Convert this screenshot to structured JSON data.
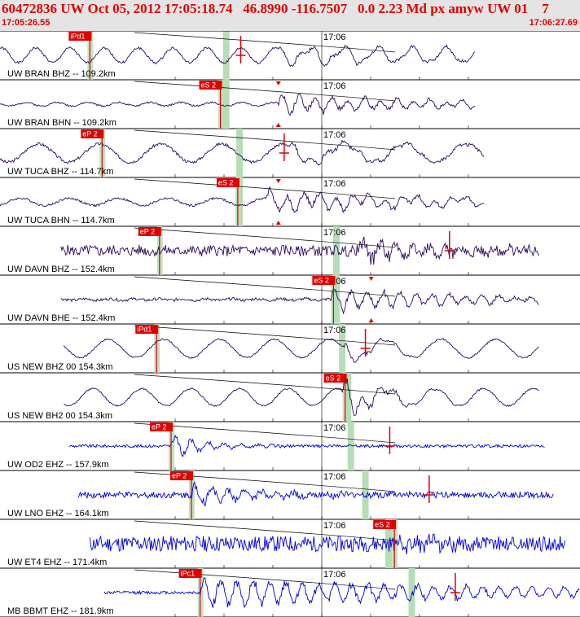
{
  "header": {
    "title": "60472836 UW Oct 05, 2012 17:05:18.74   46.8990 -116.7507   0.0 2.23 Md px amyw UW 01    7",
    "start_time": "17:05:26.55",
    "end_time": "17:06:27.69"
  },
  "minute_mark": "17:06",
  "colors": {
    "header_bg": "#e4e4e4",
    "header_text": "#e00000",
    "trace_velocity": "#2a0a5c",
    "trace_short_period": "#0000dd",
    "pick_box": "#e00000",
    "pick_window": "#b7ddb7"
  },
  "channels": [
    {
      "label": "UW BRAN BHZ -- 109.2km",
      "color": "#2a0a5c",
      "start": 0.0,
      "end": 0.82,
      "amp": 0.55,
      "noise": 0.12,
      "wave": 0.75,
      "period": 42,
      "arr": 0.48,
      "arrAmp": 0.3,
      "arrLen": 0.24,
      "phase": "iPd1",
      "pickPos": 0.155,
      "win": 0.39,
      "mark": "plus",
      "markPos": 0.415,
      "dir": "up",
      "seed": 1
    },
    {
      "label": "UW BRAN BHN -- 109.2km",
      "color": "#2a0a5c",
      "start": 0.0,
      "end": 0.82,
      "amp": 0.4,
      "noise": 0.12,
      "wave": 0.25,
      "period": 38,
      "arr": 0.48,
      "arrAmp": 0.75,
      "arrLen": 0.28,
      "phase": "eS 2",
      "pickPos": 0.38,
      "win": 0.39,
      "mark": "tri",
      "markPos": 0.48,
      "dir": "down",
      "seed": 2
    },
    {
      "label": "UW TUCA BHZ -- 114.7km",
      "color": "#2a0a5c",
      "start": 0.0,
      "end": 0.835,
      "amp": 0.6,
      "noise": 0.14,
      "wave": 0.85,
      "period": 75,
      "arr": 0.5,
      "arrAmp": 0.25,
      "arrLen": 0.2,
      "phase": "eP 2",
      "pickPos": 0.176,
      "win": 0.413,
      "mark": "plus",
      "markPos": 0.49,
      "dir": "up",
      "seed": 3
    },
    {
      "label": "UW TUCA BHN -- 114.7km",
      "color": "#2a0a5c",
      "start": 0.0,
      "end": 0.835,
      "amp": 0.45,
      "noise": 0.14,
      "wave": 0.45,
      "period": 60,
      "arr": 0.46,
      "arrAmp": 0.7,
      "arrLen": 0.3,
      "phase": "eS 2",
      "pickPos": 0.41,
      "win": 0.413,
      "mark": "tri",
      "markPos": 0.48,
      "dir": "down",
      "seed": 4
    },
    {
      "label": "UW DAVN BHZ -- 152.4km",
      "color": "#2a0a5c",
      "start": 0.105,
      "end": 0.93,
      "amp": 0.42,
      "noise": 0.7,
      "wave": 0.1,
      "period": 30,
      "arr": 0.62,
      "arrAmp": 0.8,
      "arrLen": 0.15,
      "phase": "eP 2",
      "pickPos": 0.275,
      "win": 0.58,
      "mark": "plus",
      "markPos": 0.775,
      "dir": "up",
      "seed": 5
    },
    {
      "label": "UW DAVN BHE -- 152.4km",
      "color": "#2a0a5c",
      "start": 0.105,
      "end": 0.93,
      "amp": 0.4,
      "noise": 0.2,
      "wave": 0.1,
      "period": 30,
      "arr": 0.57,
      "arrAmp": 0.85,
      "arrLen": 0.25,
      "phase": "eS 2",
      "pickPos": 0.575,
      "win": 0.58,
      "mark": "tri",
      "markPos": 0.64,
      "dir": "down",
      "seed": 6
    },
    {
      "label": "US NEW BHZ 00 154.3km",
      "color": "#2a0a5c",
      "start": 0.11,
      "end": 0.93,
      "amp": 0.6,
      "noise": 0.08,
      "wave": 0.85,
      "period": 68,
      "arr": 0.59,
      "arrAmp": 0.35,
      "arrLen": 0.06,
      "phase": "iPd1",
      "pickPos": 0.27,
      "win": 0.59,
      "mark": "plus",
      "markPos": 0.63,
      "dir": "up",
      "seed": 7
    },
    {
      "label": "US NEW BH2 00 154.3km",
      "color": "#2a0a5c",
      "start": 0.11,
      "end": 0.93,
      "amp": 0.6,
      "noise": 0.08,
      "wave": 0.8,
      "period": 60,
      "arr": 0.59,
      "arrAmp": 0.8,
      "arrLen": 0.06,
      "phase": "eS 2",
      "pickPos": 0.595,
      "win": 0.6,
      "mark": "none",
      "markPos": 0,
      "dir": "down",
      "seed": 8
    },
    {
      "label": "UW OD2 EHZ -- 157.9km",
      "color": "#0000dd",
      "start": 0.12,
      "end": 0.94,
      "amp": 0.65,
      "noise": 0.13,
      "wave": 0,
      "period": 20,
      "arr": 0.295,
      "arrAmp": 0.55,
      "arrLen": 0.06,
      "phase": "eP 2",
      "pickPos": 0.295,
      "win": 0.605,
      "mark": "plus",
      "markPos": 0.672,
      "dir": "up",
      "seed": 9
    },
    {
      "label": "UW LNO EHZ -- 164.1km",
      "color": "#0000dd",
      "start": 0.135,
      "end": 0.955,
      "amp": 0.6,
      "noise": 0.3,
      "wave": 0,
      "period": 20,
      "arr": 0.33,
      "arrAmp": 0.55,
      "arrLen": 0.12,
      "phase": "eP 2",
      "pickPos": 0.33,
      "win": 0.63,
      "mark": "plus",
      "markPos": 0.74,
      "dir": "up",
      "seed": 10
    },
    {
      "label": "UW ET4 EHZ -- 171.4km",
      "color": "#0000dd",
      "start": 0.155,
      "end": 0.975,
      "amp": 0.55,
      "noise": 0.8,
      "wave": 0,
      "period": 20,
      "arr": 0.68,
      "arrAmp": 0.3,
      "arrLen": 0.12,
      "phase": "eS 2",
      "pickPos": 0.68,
      "win": 0.67,
      "mark": "none",
      "markPos": 0,
      "dir": "up",
      "seed": 11
    },
    {
      "label": "MB BBMT EHZ -- 181.9km",
      "color": "#0000dd",
      "start": 0.18,
      "end": 1.0,
      "amp": 0.6,
      "noise": 0.15,
      "wave": 0,
      "period": 20,
      "arr": 0.345,
      "arrAmp": 0.7,
      "arrLen": 0.6,
      "phase": "iPc1",
      "pickPos": 0.345,
      "win": 0.71,
      "mark": "plus",
      "markPos": 0.785,
      "dir": "up",
      "seed": 12
    }
  ]
}
